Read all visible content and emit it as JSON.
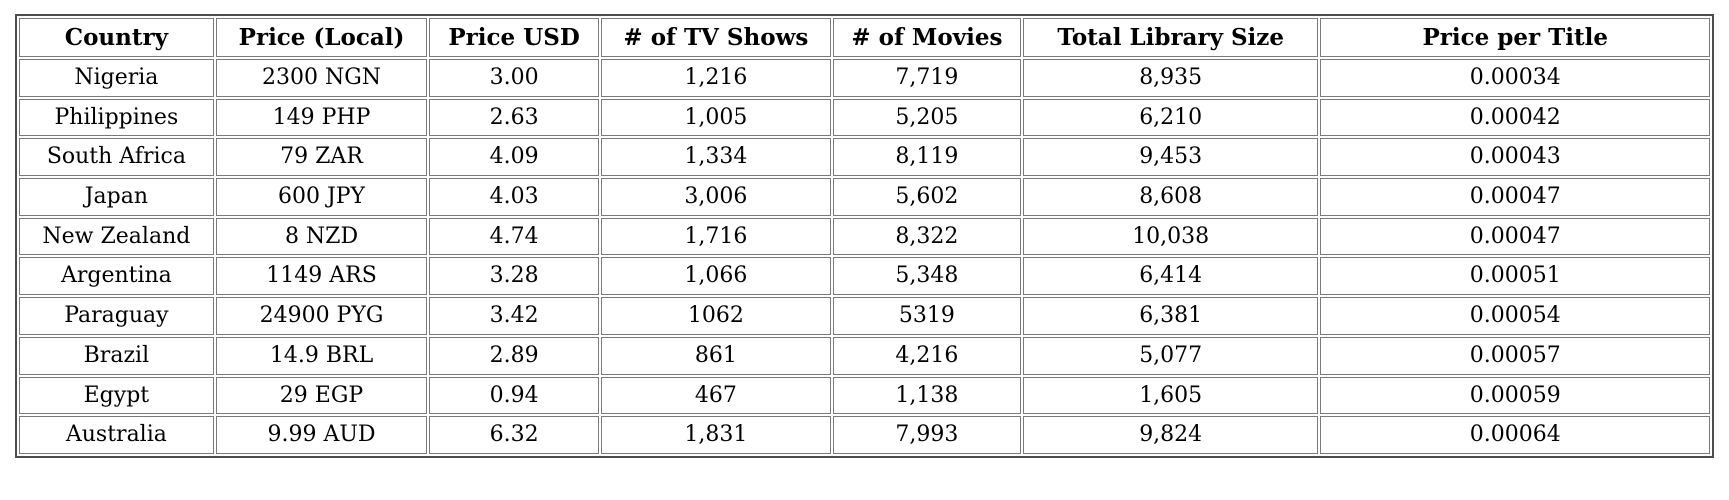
{
  "page": {
    "background_color": "#ffffff",
    "text_color": "#000000",
    "border_color": "#4d4d4d"
  },
  "chart_data": {
    "type": "table",
    "title": "",
    "columns": [
      "Country",
      "Price (Local)",
      "Price USD",
      "# of TV Shows",
      "# of Movies",
      "Total Library Size",
      "Price per Title"
    ],
    "rows": [
      [
        "Nigeria",
        "2300 NGN",
        "3.00",
        "1,216",
        "7,719",
        "8,935",
        "0.00034"
      ],
      [
        "Philippines",
        "149 PHP",
        "2.63",
        "1,005",
        "5,205",
        "6,210",
        "0.00042"
      ],
      [
        "South Africa",
        "79 ZAR",
        "4.09",
        "1,334",
        "8,119",
        "9,453",
        "0.00043"
      ],
      [
        "Japan",
        "600 JPY",
        "4.03",
        "3,006",
        "5,602",
        "8,608",
        "0.00047"
      ],
      [
        "New Zealand",
        "8 NZD",
        "4.74",
        "1,716",
        "8,322",
        "10,038",
        "0.00047"
      ],
      [
        "Argentina",
        "1149 ARS",
        "3.28",
        "1,066",
        "5,348",
        "6,414",
        "0.00051"
      ],
      [
        "Paraguay",
        "24900 PYG",
        "3.42",
        "1062",
        "5319",
        "6,381",
        "0.00054"
      ],
      [
        "Brazil",
        "14.9 BRL",
        "2.89",
        "861",
        "4,216",
        "5,077",
        "0.00057"
      ],
      [
        "Egypt",
        "29 EGP",
        "0.94",
        "467",
        "1,138",
        "1,605",
        "0.00059"
      ],
      [
        "Australia",
        "9.99 AUD",
        "6.32",
        "1,831",
        "7,993",
        "9,824",
        "0.00064"
      ]
    ]
  }
}
